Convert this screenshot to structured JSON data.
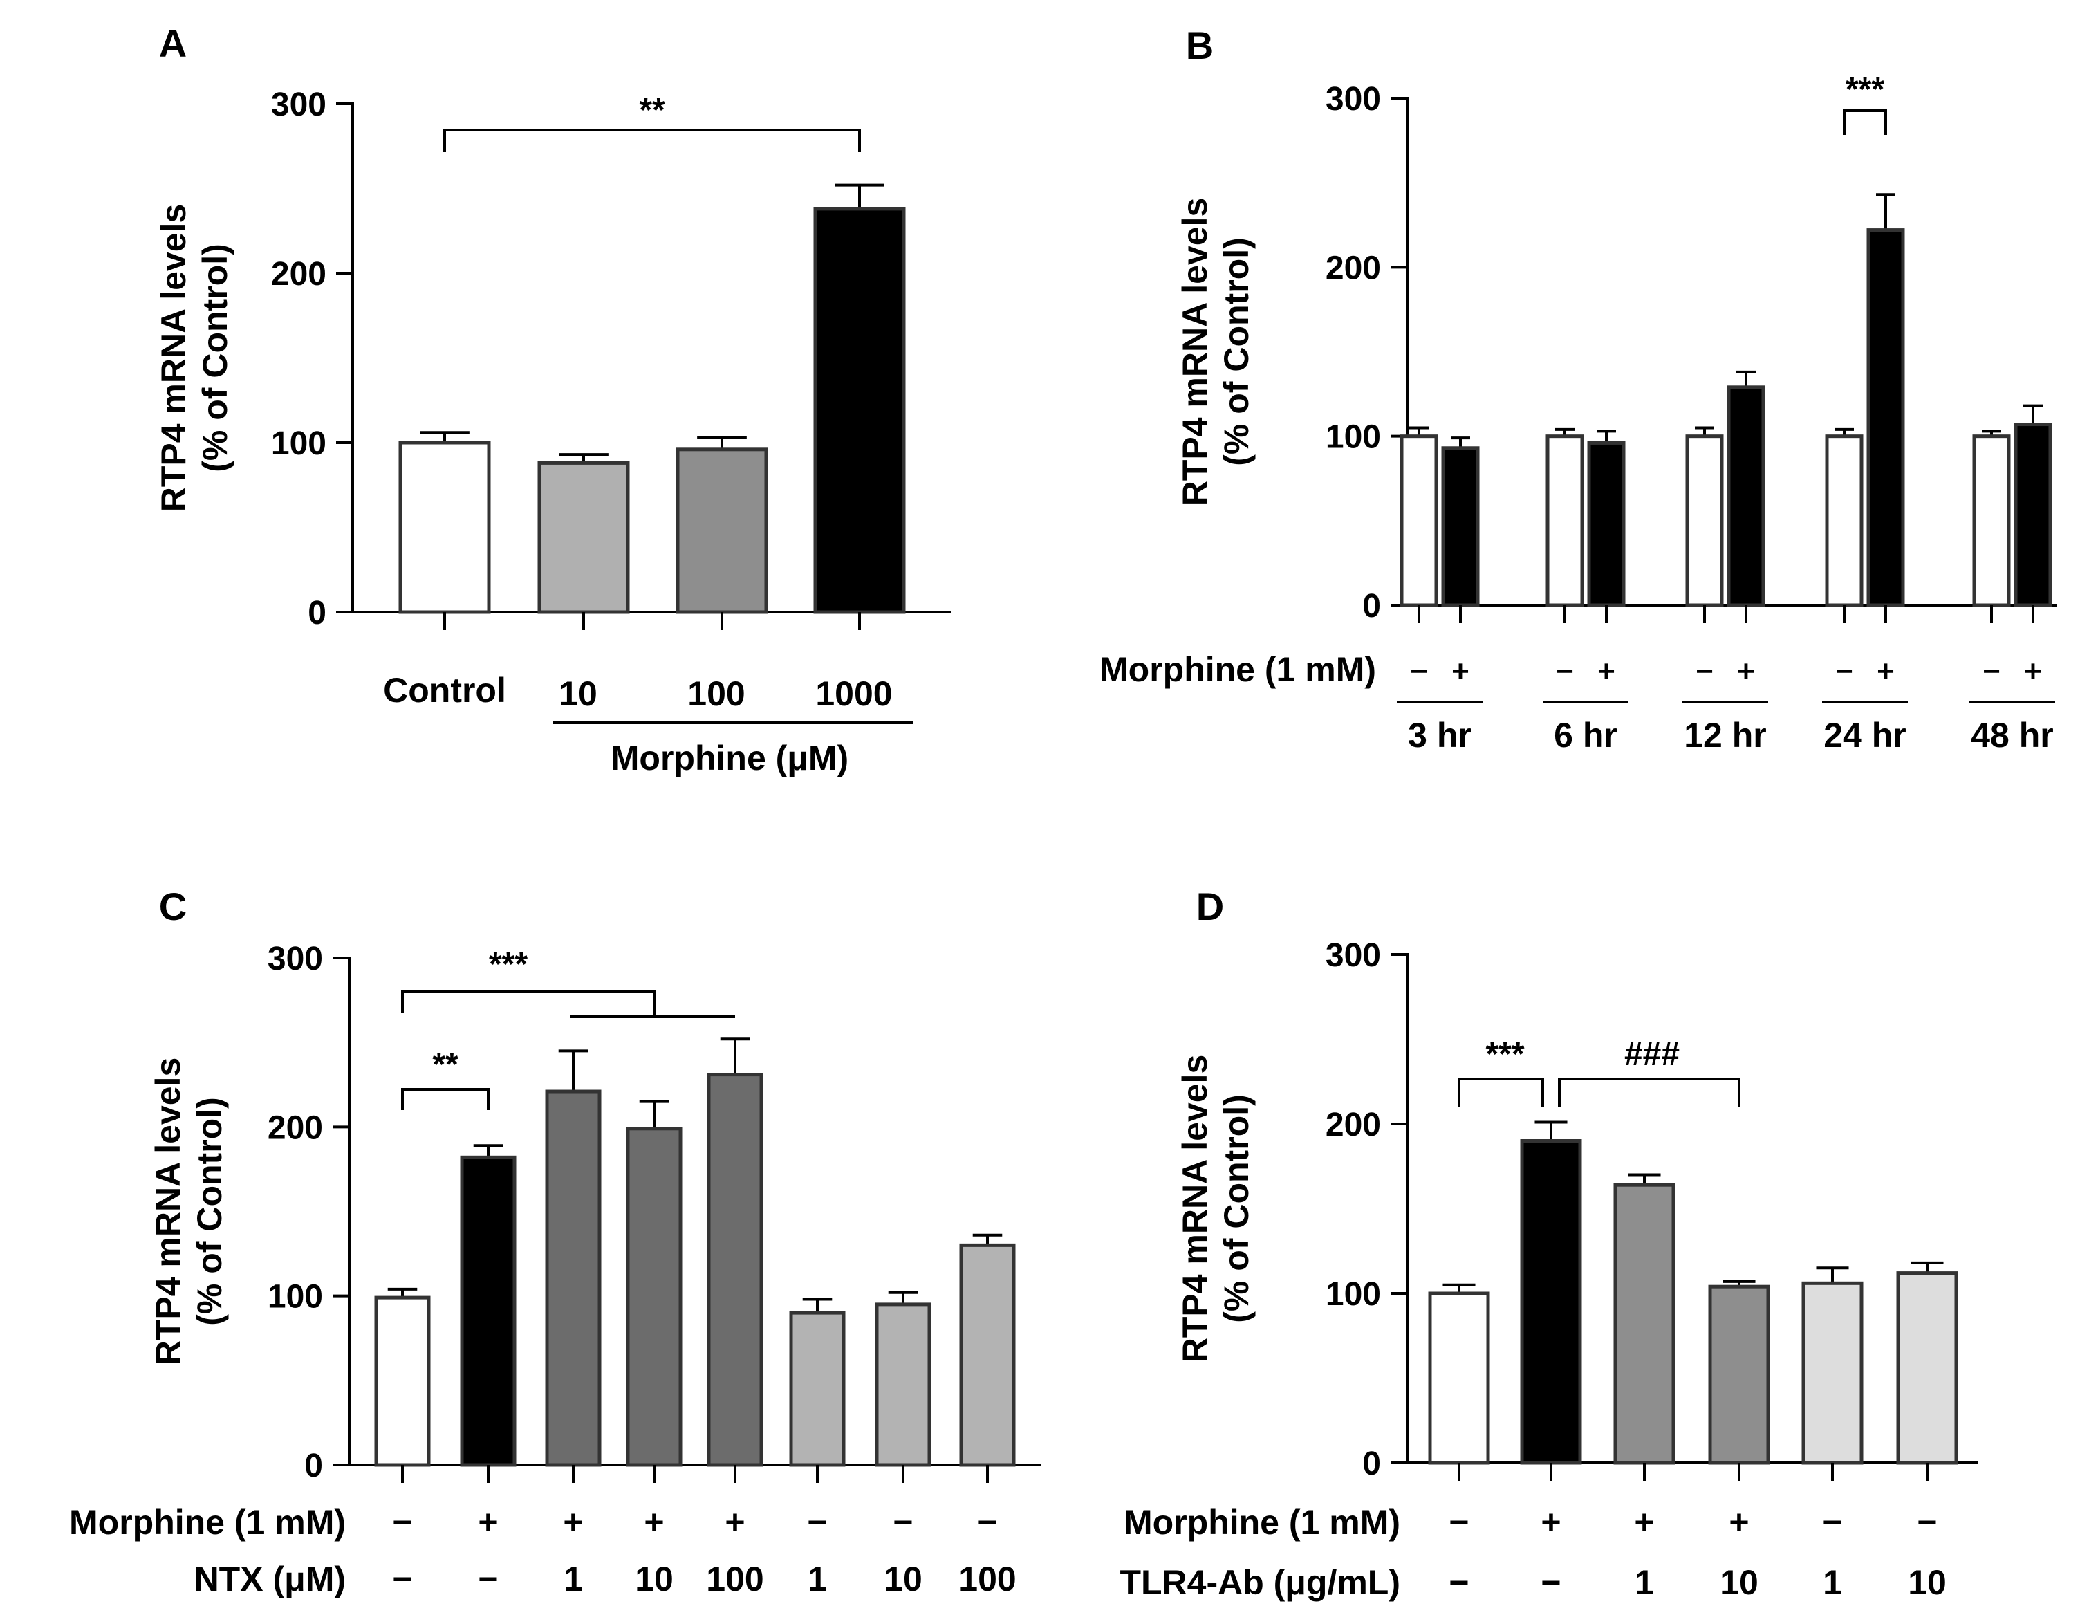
{
  "chart_data": [
    {
      "panel": "A",
      "type": "bar",
      "ylabel": [
        "RTP4 mRNA levels",
        "(% of Control)"
      ],
      "ylim": [
        0,
        300
      ],
      "yticks": [
        0,
        100,
        200,
        300
      ],
      "categories": [
        "Control",
        "10",
        "100",
        "1000"
      ],
      "values": [
        100,
        88,
        96,
        238
      ],
      "errors": [
        6,
        5,
        7,
        14
      ],
      "fills": [
        "#ffffff",
        "#b0b0b0",
        "#8e8e8e",
        "#000000"
      ],
      "group_label": "Morphine (μM)",
      "significance": [
        {
          "from": 0,
          "to": 3,
          "label": "**"
        }
      ]
    },
    {
      "panel": "B",
      "type": "bar",
      "ylabel": [
        "RTP4 mRNA levels",
        "(% of Control)"
      ],
      "ylim": [
        0,
        300
      ],
      "yticks": [
        0,
        100,
        200,
        300
      ],
      "treatment_label": "Morphine (1 mM)",
      "groups": [
        "3 hr",
        "6 hr",
        "12 hr",
        "24 hr",
        "48 hr"
      ],
      "series": [
        {
          "name": "−",
          "values": [
            100,
            100,
            100,
            100,
            100
          ],
          "errors": [
            5,
            4,
            5,
            4,
            3
          ],
          "fill": "#ffffff"
        },
        {
          "name": "+",
          "values": [
            93,
            96,
            129,
            222,
            107
          ],
          "errors": [
            6,
            7,
            9,
            21,
            11
          ],
          "fill": "#000000"
        }
      ],
      "significance": [
        {
          "group": 3,
          "label": "***"
        }
      ]
    },
    {
      "panel": "C",
      "type": "bar",
      "ylabel": [
        "RTP4 mRNA levels",
        "(% of Control)"
      ],
      "ylim": [
        0,
        300
      ],
      "yticks": [
        0,
        100,
        200,
        300
      ],
      "values": [
        99,
        182,
        221,
        199,
        231,
        90,
        95,
        130
      ],
      "errors": [
        5,
        7,
        24,
        16,
        21,
        8,
        7,
        6
      ],
      "fills": [
        "#ffffff",
        "#000000",
        "#6c6c6c",
        "#6c6c6c",
        "#6c6c6c",
        "#b3b3b3",
        "#b3b3b3",
        "#b3b3b3"
      ],
      "rows": [
        {
          "label": "Morphine (1 mM)",
          "cells": [
            "−",
            "+",
            "+",
            "+",
            "+",
            "−",
            "−",
            "−"
          ]
        },
        {
          "label": "NTX (μM)",
          "cells": [
            "−",
            "−",
            "1",
            "10",
            "100",
            "1",
            "10",
            "100"
          ]
        }
      ],
      "significance": [
        {
          "from": 0,
          "to": 1,
          "label": "**"
        },
        {
          "from": 0,
          "to": "2-4",
          "label": "***"
        }
      ]
    },
    {
      "panel": "D",
      "type": "bar",
      "ylabel": [
        "RTP4 mRNA levels",
        "(% of Control)"
      ],
      "ylim": [
        0,
        300
      ],
      "yticks": [
        0,
        100,
        200,
        300
      ],
      "values": [
        100,
        190,
        164,
        104,
        106,
        112
      ],
      "errors": [
        5,
        11,
        6,
        3,
        9,
        6
      ],
      "fills": [
        "#ffffff",
        "#000000",
        "#8e8e8e",
        "#8e8e8e",
        "#dddddd",
        "#dddddd"
      ],
      "rows": [
        {
          "label": "Morphine (1 mM)",
          "cells": [
            "−",
            "+",
            "+",
            "+",
            "−",
            "−"
          ]
        },
        {
          "label": "TLR4-Ab (μg/mL)",
          "cells": [
            "−",
            "−",
            "1",
            "10",
            "1",
            "10"
          ]
        }
      ],
      "significance": [
        {
          "from": 0,
          "to": 1,
          "label": "***"
        },
        {
          "from": 1,
          "to": 3,
          "label": "###"
        }
      ]
    }
  ]
}
